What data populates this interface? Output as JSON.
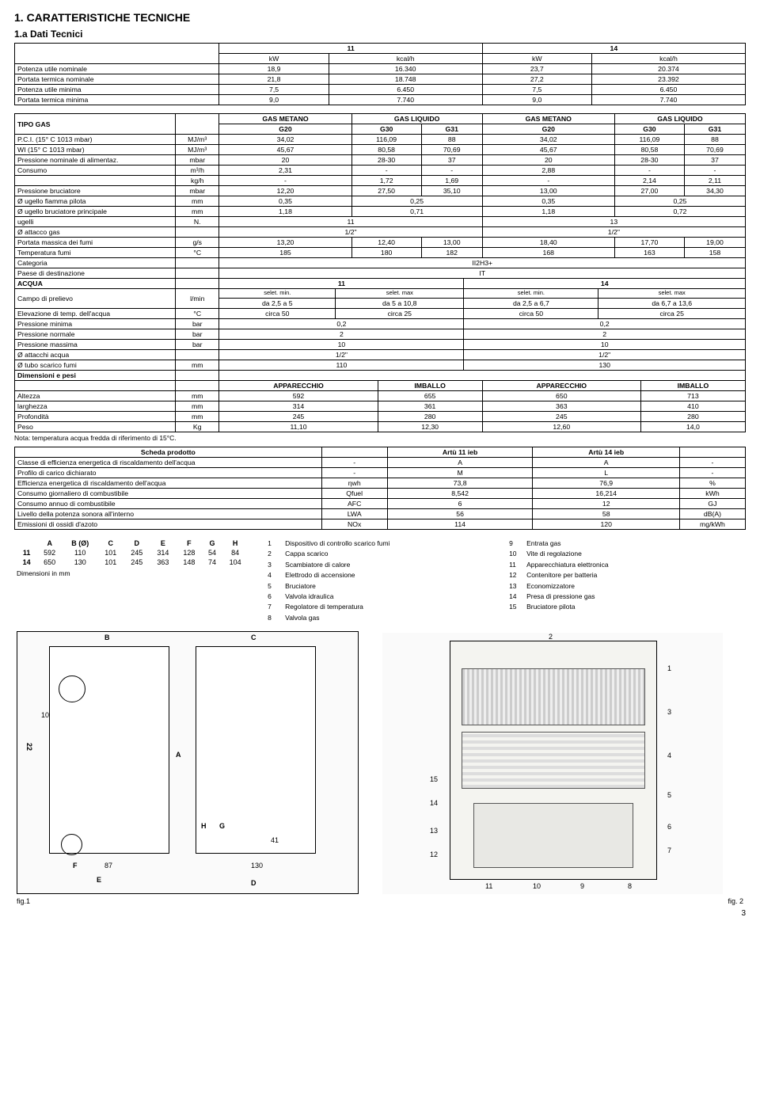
{
  "heading": {
    "num": "1. CARATTERISTICHE TECNICHE",
    "sub": "1.a Dati Tecnici"
  },
  "topcols": {
    "c1": "11",
    "c2": "14",
    "u1": "kW",
    "u2": "kcal/h",
    "u3": "kW",
    "u4": "kcal/h"
  },
  "top": [
    {
      "l": "Potenza utile nominale",
      "v": [
        "18,9",
        "16.340",
        "23,7",
        "20.374"
      ]
    },
    {
      "l": "Portata termica nominale",
      "v": [
        "21,8",
        "18.748",
        "27,2",
        "23.392"
      ]
    },
    {
      "l": "Potenza utile minima",
      "v": [
        "7,5",
        "6.450",
        "7,5",
        "6.450"
      ]
    },
    {
      "l": "Portata termica minima",
      "v": [
        "9,0",
        "7.740",
        "9,0",
        "7.740"
      ]
    }
  ],
  "gasHead": {
    "l": "TIPO GAS",
    "m": "GAS METANO",
    "q": "GAS LIQUIDO",
    "cols": [
      "G20",
      "G30",
      "G31",
      "G20",
      "G30",
      "G31"
    ]
  },
  "gas": [
    {
      "l": "P.C.I. (15° C 1013 mbar)",
      "u": "MJ/m³",
      "v": [
        "34,02",
        "116,09",
        "88",
        "34,02",
        "116,09",
        "88"
      ]
    },
    {
      "l": "WI   (15° C 1013 mbar)",
      "u": "MJ/m³",
      "v": [
        "45,67",
        "80,58",
        "70,69",
        "45,67",
        "80,58",
        "70,69"
      ]
    },
    {
      "l": "Pressione nominale di alimentaz.",
      "u": "mbar",
      "v": [
        "20",
        "28-30",
        "37",
        "20",
        "28-30",
        "37"
      ]
    },
    {
      "l": "Consumo",
      "u": "m³/h",
      "v": [
        "2,31",
        "-",
        "-",
        "2,88",
        "-",
        "-"
      ]
    },
    {
      "l": "",
      "u": "kg/h",
      "v": [
        "-",
        "1,72",
        "1,69",
        "-",
        "2,14",
        "2,11"
      ]
    },
    {
      "l": "Pressione bruciatore",
      "u": "mbar",
      "v": [
        "12,20",
        "27,50",
        "35,10",
        "13,00",
        "27,00",
        "34,30"
      ]
    }
  ],
  "gasSpan": [
    {
      "l": "Ø ugello fiamma pilota",
      "u": "mm",
      "v": [
        "0,35",
        "0,25",
        "0,35",
        "0,25"
      ]
    },
    {
      "l": "Ø ugello bruciatore principale",
      "u": "mm",
      "v": [
        "1,18",
        "0,71",
        "1,18",
        "0,72"
      ]
    }
  ],
  "gasWide": [
    {
      "l": "ugelli",
      "u": "N.",
      "v": [
        "11",
        "13"
      ]
    },
    {
      "l": "Ø attacco gas",
      "u": "",
      "v": [
        "1/2\"",
        "1/2\""
      ]
    }
  ],
  "gas6": [
    {
      "l": "Portata massica dei fumi",
      "u": "g/s",
      "v": [
        "13,20",
        "12,40",
        "13,00",
        "18,40",
        "17,70",
        "19,00"
      ]
    },
    {
      "l": "Temperatura fumi",
      "u": "°C",
      "v": [
        "185",
        "180",
        "182",
        "168",
        "163",
        "158"
      ]
    }
  ],
  "gasFull": [
    {
      "l": "Categoria",
      "v": "II2H3+"
    },
    {
      "l": "Paese di destinazione",
      "v": "IT"
    }
  ],
  "acquaHead": {
    "l": "ACQUA",
    "c1": "11",
    "c2": "14"
  },
  "campo": {
    "l": "Campo di prelievo",
    "u": "l/min",
    "h": [
      "selet. min.",
      "selet. max",
      "selet. min.",
      "selet. max"
    ],
    "v": [
      "da 2,5 a 5",
      "da 5 a 10,8",
      "da 2,5 a 6,7",
      "da 6,7 a 13,6"
    ]
  },
  "acqua4": [
    {
      "l": "Elevazione di temp. dell'acqua",
      "u": "°C",
      "v": [
        "circa 50",
        "circa 25",
        "circa 50",
        "circa 25"
      ]
    }
  ],
  "acqua2": [
    {
      "l": "Pressione minima",
      "u": "bar",
      "v": [
        "0,2",
        "0,2"
      ]
    },
    {
      "l": "Pressione normale",
      "u": "bar",
      "v": [
        "2",
        "2"
      ]
    },
    {
      "l": "Pressione massima",
      "u": "bar",
      "v": [
        "10",
        "10"
      ]
    },
    {
      "l": "Ø attacchi acqua",
      "u": "",
      "v": [
        "1/2\"",
        "1/2\""
      ]
    },
    {
      "l": "Ø tubo scarico fumi",
      "u": "mm",
      "v": [
        "110",
        "130"
      ]
    }
  ],
  "dimHead": {
    "l": "Dimensioni e pesi",
    "cols": [
      "APPARECCHIO",
      "IMBALLO",
      "APPARECCHIO",
      "IMBALLO"
    ]
  },
  "dim": [
    {
      "l": "Altezza",
      "u": "mm",
      "v": [
        "592",
        "655",
        "650",
        "713"
      ]
    },
    {
      "l": "larghezza",
      "u": "mm",
      "v": [
        "314",
        "361",
        "363",
        "410"
      ]
    },
    {
      "l": "Profondità",
      "u": "mm",
      "v": [
        "245",
        "280",
        "245",
        "280"
      ]
    },
    {
      "l": "Peso",
      "u": "Kg",
      "v": [
        "11,10",
        "12,30",
        "12,60",
        "14,0"
      ]
    }
  ],
  "note": "Nota: temperatura acqua fredda di riferimento di 15°C.",
  "schedaHead": {
    "l": "Scheda prodotto",
    "c1": "Artù 11 ieb",
    "c2": "Artù 14 ieb"
  },
  "scheda": [
    {
      "l": "Classe di efficienza energetica di riscaldamento dell'acqua",
      "u": "-",
      "v": [
        "A",
        "A",
        "-"
      ]
    },
    {
      "l": "Profilo di carico dichiarato",
      "u": "-",
      "v": [
        "M",
        "L",
        "-"
      ]
    },
    {
      "l": "Efficienza energetica di riscaldamento dell'acqua",
      "u": "ηwh",
      "v": [
        "73,8",
        "76,9",
        "%"
      ]
    },
    {
      "l": "Consumo giornaliero di combustibile",
      "u": "Qfuel",
      "v": [
        "8,542",
        "16,214",
        "kWh"
      ]
    },
    {
      "l": "Consumo annuo di combustibile",
      "u": "AFC",
      "v": [
        "6",
        "12",
        "GJ"
      ]
    },
    {
      "l": "Livello della potenza sonora all'interno",
      "u": "LWA",
      "v": [
        "56",
        "58",
        "dB(A)"
      ]
    },
    {
      "l": "Emissioni di ossidi d'azoto",
      "u": "NOx",
      "v": [
        "114",
        "120",
        "mg/kWh"
      ]
    }
  ],
  "dimTable": {
    "cols": [
      "",
      "A",
      "B (Ø)",
      "C",
      "D",
      "E",
      "F",
      "G",
      "H"
    ],
    "rows": [
      [
        "11",
        "592",
        "110",
        "101",
        "245",
        "314",
        "128",
        "54",
        "84"
      ],
      [
        "14",
        "650",
        "130",
        "101",
        "245",
        "363",
        "148",
        "74",
        "104"
      ]
    ],
    "caption": "Dimensioni in mm"
  },
  "legend": {
    "left": [
      [
        "1",
        "Dispositivo di controllo scarico fumi"
      ],
      [
        "2",
        "Cappa scarico"
      ],
      [
        "3",
        "Scambiatore di calore"
      ],
      [
        "4",
        "Elettrodo di accensione"
      ],
      [
        "5",
        "Bruciatore"
      ],
      [
        "6",
        "Valvola idraulica"
      ],
      [
        "7",
        "Regolatore di temperatura"
      ],
      [
        "8",
        "Valvola gas"
      ]
    ],
    "right": [
      [
        "9",
        "Entrata gas"
      ],
      [
        "10",
        "Vite di regolazione"
      ],
      [
        "11",
        "Apparecchiatura elettronica"
      ],
      [
        "12",
        "Contenitore per batteria"
      ],
      [
        "13",
        "Economizzatore"
      ],
      [
        "14",
        "Presa di pressione gas"
      ],
      [
        "15",
        "Bruciatore pilota"
      ]
    ]
  },
  "diagLeft": {
    "B": "B",
    "C": "C",
    "A": "A",
    "H": "H",
    "G": "G",
    "F": "F",
    "E": "E",
    "D": "D",
    "n10": "10",
    "n22": "22",
    "n87": "87",
    "n41": "41",
    "n130": "130"
  },
  "diagRight": {
    "top": [
      "2",
      "1"
    ],
    "right": [
      "3",
      "4",
      "5",
      "6",
      "7"
    ],
    "left": [
      "15",
      "14",
      "13",
      "12"
    ],
    "bottom": [
      "11",
      "10",
      "9",
      "8"
    ]
  },
  "fig1": "fig.1",
  "fig2": "fig. 2",
  "page": "3"
}
